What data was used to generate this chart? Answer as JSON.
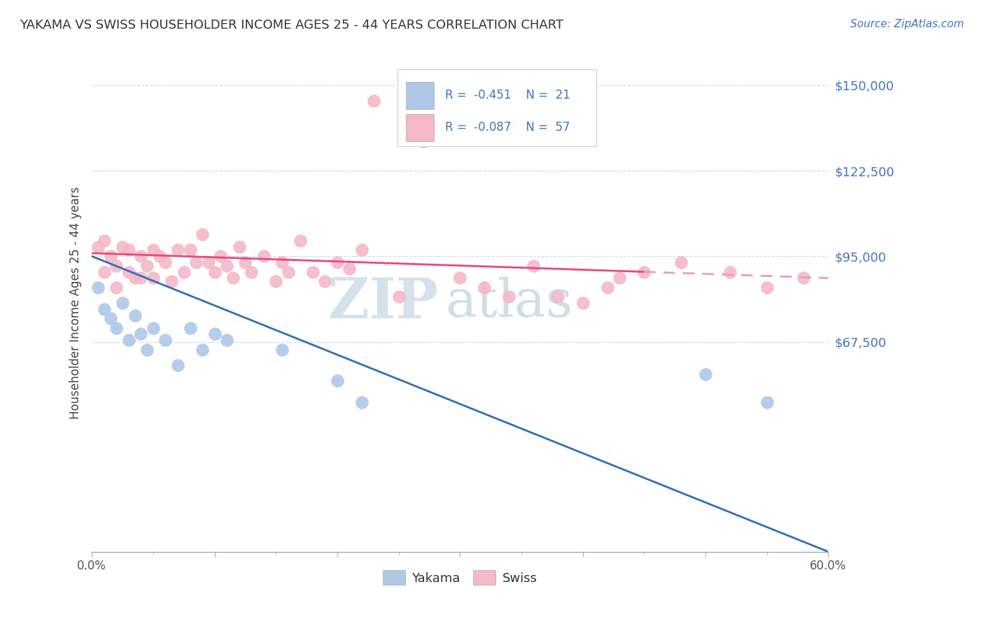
{
  "title": "YAKAMA VS SWISS HOUSEHOLDER INCOME AGES 25 - 44 YEARS CORRELATION CHART",
  "source": "Source: ZipAtlas.com",
  "ylabel": "Householder Income Ages 25 - 44 years",
  "xlim": [
    0.0,
    0.6
  ],
  "ylim": [
    0,
    160000
  ],
  "yticks": [
    67500,
    95000,
    122500,
    150000
  ],
  "ytick_labels": [
    "$67,500",
    "$95,000",
    "$122,500",
    "$150,000"
  ],
  "xticks": [
    0.0,
    0.1,
    0.2,
    0.3,
    0.4,
    0.5,
    0.6
  ],
  "xtick_labels": [
    "0.0%",
    "",
    "",
    "",
    "",
    "",
    "60.0%"
  ],
  "yakama_color": "#aec8e8",
  "swiss_color": "#f4b8c8",
  "yakama_line_color": "#3070b8",
  "swiss_line_color": "#e84880",
  "swiss_line_dash_color": "#e8a0b8",
  "watermark_zip": "ZIP",
  "watermark_atlas": "atlas",
  "watermark_color_zip": "#c5d5e5",
  "watermark_color_atlas": "#b0c8d8",
  "background_color": "#ffffff",
  "grid_color": "#c8d8e8",
  "yakama_x": [
    0.005,
    0.01,
    0.015,
    0.02,
    0.025,
    0.03,
    0.035,
    0.04,
    0.045,
    0.05,
    0.06,
    0.07,
    0.08,
    0.09,
    0.1,
    0.11,
    0.155,
    0.2,
    0.22,
    0.5,
    0.55
  ],
  "yakama_y": [
    85000,
    78000,
    75000,
    72000,
    80000,
    68000,
    76000,
    70000,
    65000,
    72000,
    68000,
    60000,
    72000,
    65000,
    70000,
    68000,
    65000,
    55000,
    48000,
    57000,
    48000
  ],
  "swiss_x": [
    0.005,
    0.01,
    0.01,
    0.015,
    0.02,
    0.02,
    0.025,
    0.03,
    0.03,
    0.035,
    0.04,
    0.04,
    0.045,
    0.05,
    0.05,
    0.055,
    0.06,
    0.065,
    0.07,
    0.075,
    0.08,
    0.085,
    0.09,
    0.095,
    0.1,
    0.105,
    0.11,
    0.115,
    0.12,
    0.125,
    0.13,
    0.14,
    0.15,
    0.155,
    0.16,
    0.17,
    0.18,
    0.19,
    0.2,
    0.21,
    0.22,
    0.23,
    0.25,
    0.27,
    0.3,
    0.32,
    0.34,
    0.36,
    0.38,
    0.4,
    0.42,
    0.43,
    0.45,
    0.48,
    0.52,
    0.55,
    0.58
  ],
  "swiss_y": [
    98000,
    100000,
    90000,
    95000,
    92000,
    85000,
    98000,
    97000,
    90000,
    88000,
    95000,
    88000,
    92000,
    97000,
    88000,
    95000,
    93000,
    87000,
    97000,
    90000,
    97000,
    93000,
    102000,
    93000,
    90000,
    95000,
    92000,
    88000,
    98000,
    93000,
    90000,
    95000,
    87000,
    93000,
    90000,
    100000,
    90000,
    87000,
    93000,
    91000,
    97000,
    145000,
    82000,
    132000,
    88000,
    85000,
    82000,
    92000,
    82000,
    80000,
    85000,
    88000,
    90000,
    93000,
    90000,
    85000,
    88000
  ]
}
